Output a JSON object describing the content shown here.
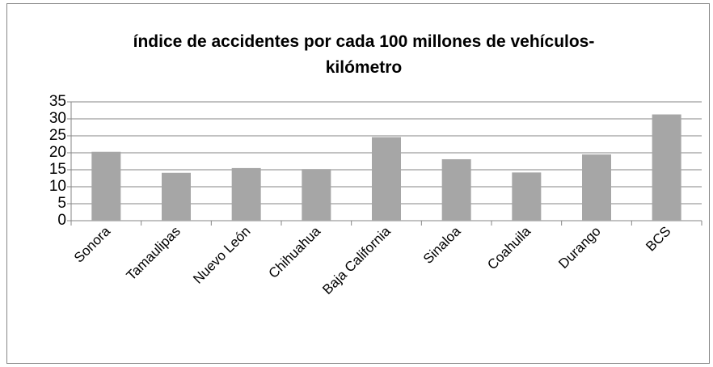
{
  "chart_data": {
    "type": "bar",
    "title": "índice de accidentes por cada 100 millones de vehículos-kilómetro",
    "categories": [
      "Sonora",
      "Tamaulipas",
      "Nuevo León",
      "Chihuahua",
      "Baja California",
      "Sinaloa",
      "Coahuila",
      "Durango",
      "BCS"
    ],
    "values": [
      20.3,
      14.1,
      15.5,
      15.2,
      24.6,
      18.1,
      14.2,
      19.5,
      31.3
    ],
    "color": "#a6a6a6",
    "ylim": [
      0,
      35
    ],
    "yticks": [
      0,
      5,
      10,
      15,
      20,
      25,
      30,
      35
    ],
    "grid": true
  }
}
